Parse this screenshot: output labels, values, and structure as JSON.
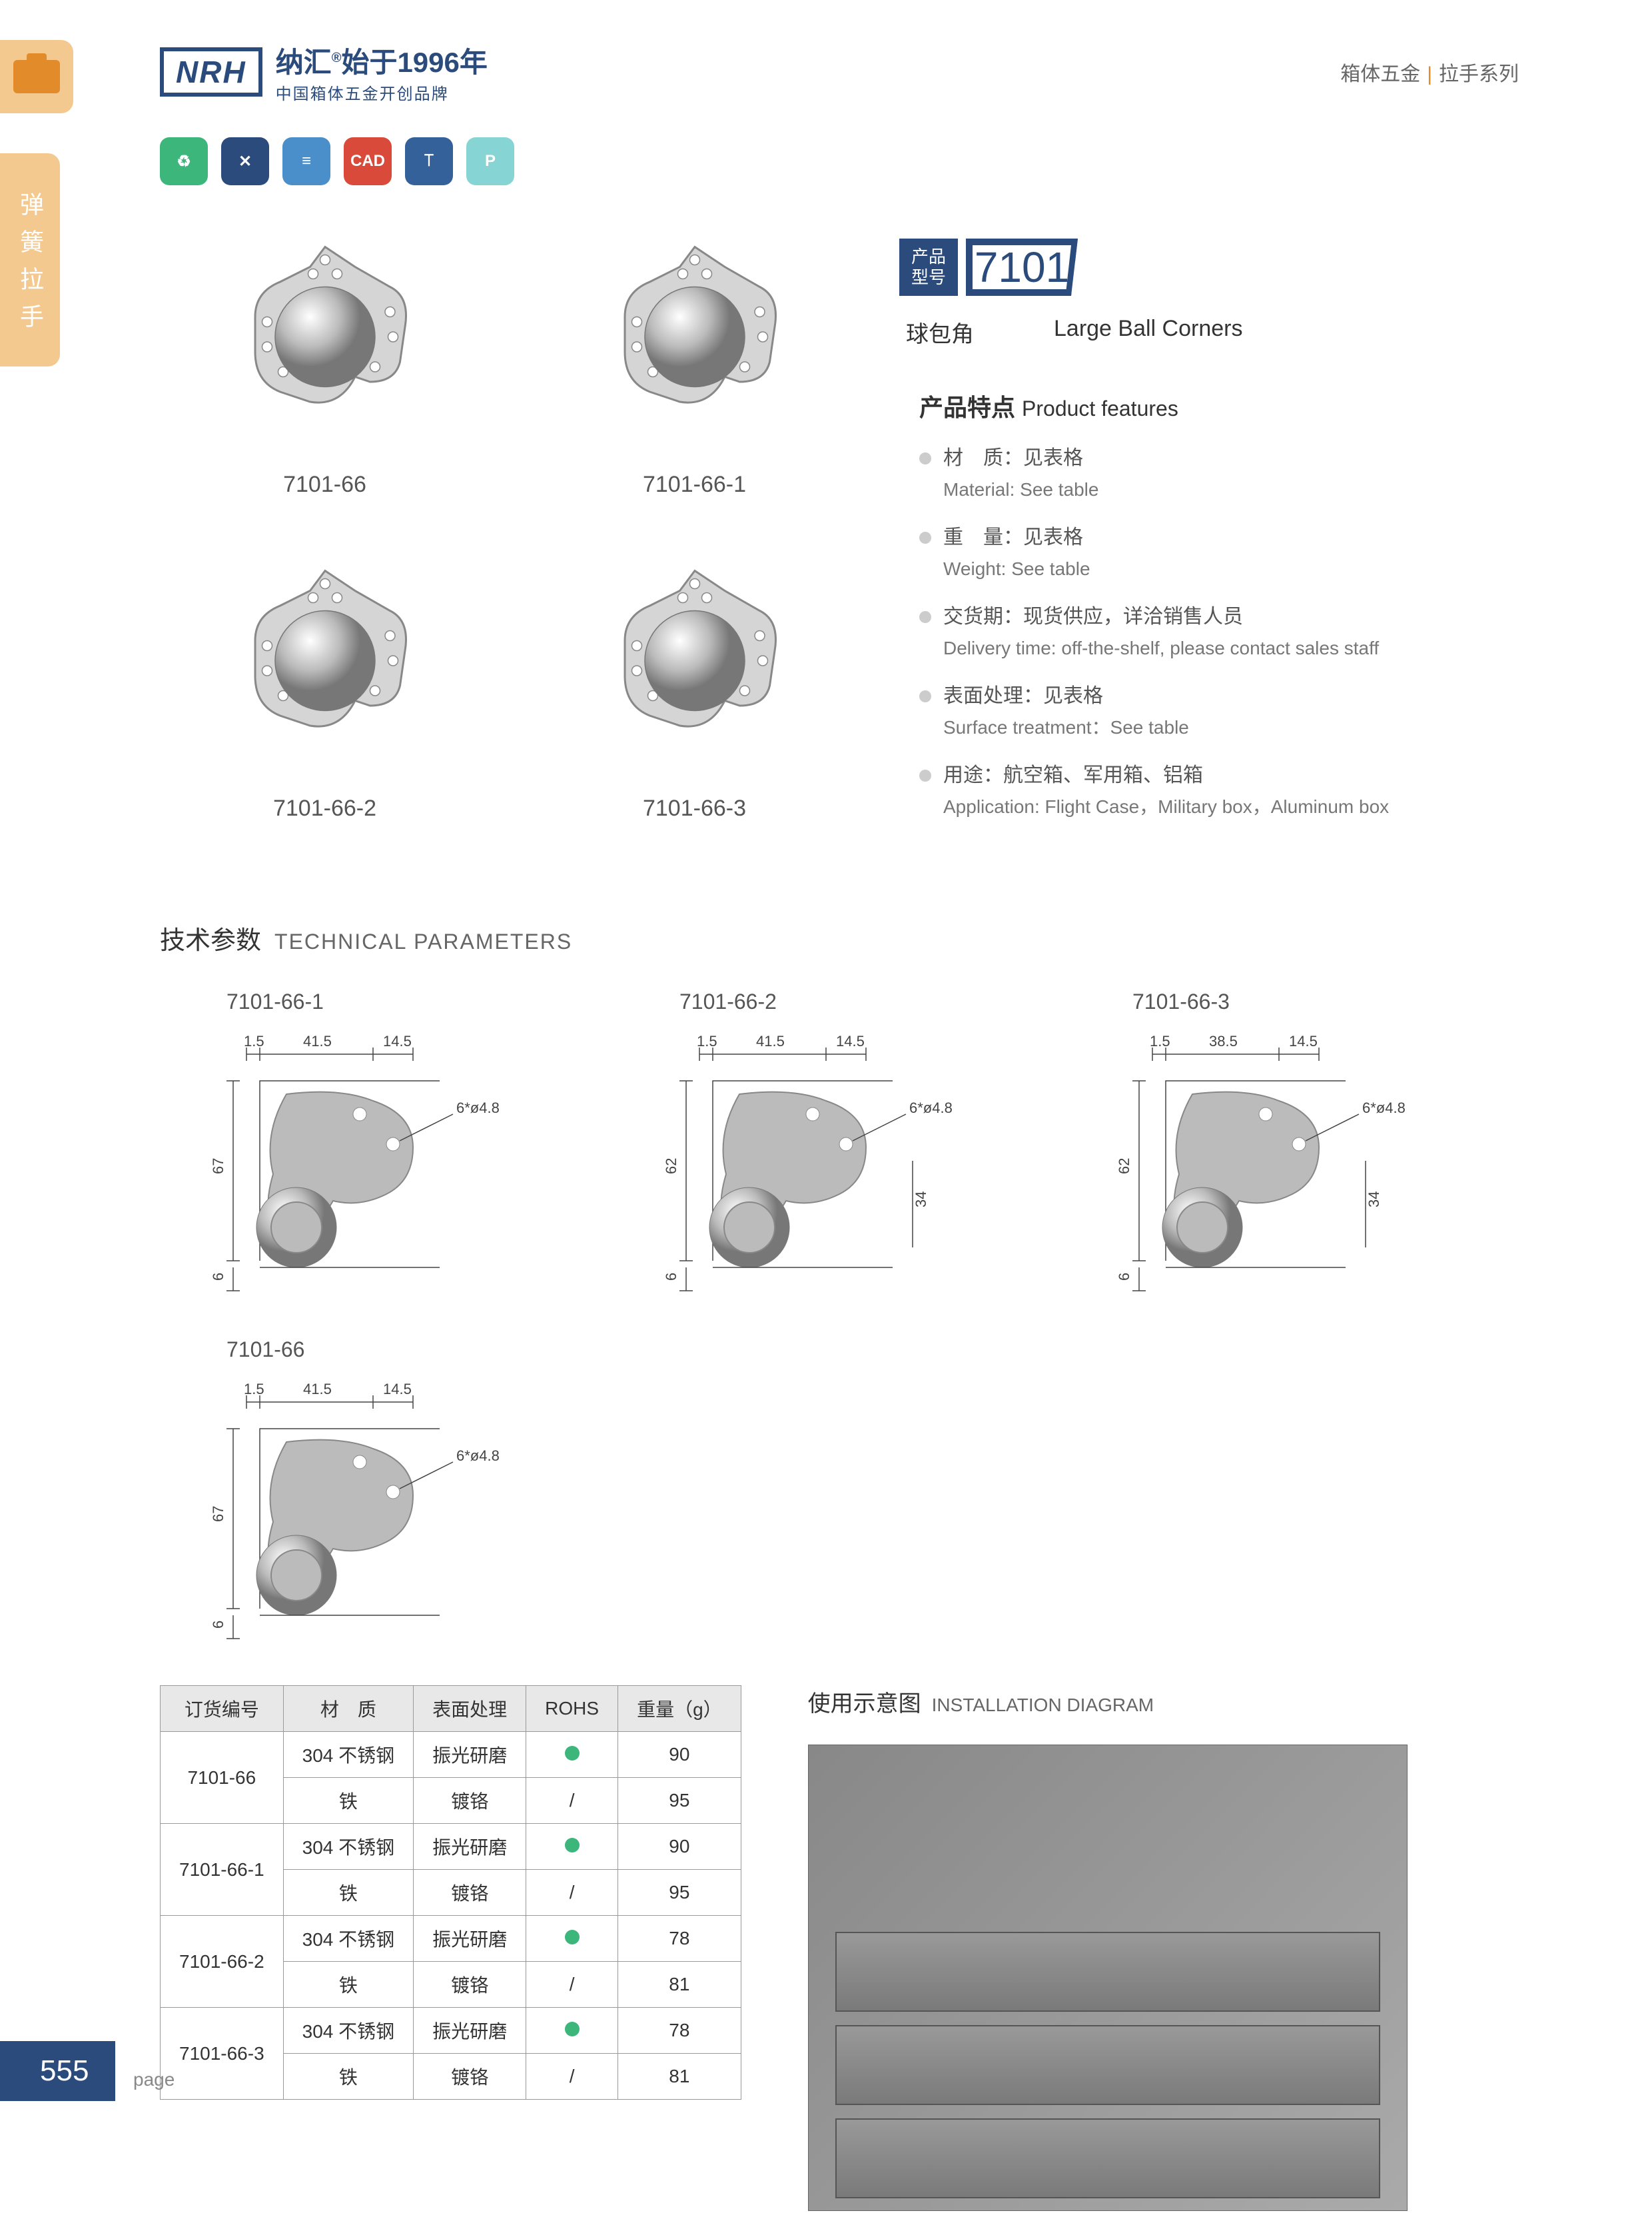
{
  "header": {
    "logo": "NRH",
    "logo_cn": "纳汇",
    "logo_year": "始于1996年",
    "logo_sub": "中国箱体五金开创品牌",
    "cat1": "箱体五金",
    "cat2": "拉手系列"
  },
  "side_tab": "弹簧拉手",
  "icons": [
    "♻",
    "✕",
    "≡",
    "CAD",
    "⟙",
    "P"
  ],
  "icon_colors": [
    "#3db67b",
    "#2a4b7c",
    "#4a8fc9",
    "#d94a3a",
    "#34619a",
    "#86d4d4"
  ],
  "products": [
    {
      "code": "7101-66"
    },
    {
      "code": "7101-66-1"
    },
    {
      "code": "7101-66-2"
    },
    {
      "code": "7101-66-3"
    }
  ],
  "model": {
    "label1": "产品",
    "label2": "型号",
    "number": "7101",
    "name_cn": "球包角",
    "name_en": "Large Ball Corners"
  },
  "features": {
    "title_cn": "产品特点",
    "title_en": "Product features",
    "items": [
      {
        "cn": "材　质：见表格",
        "en": "Material: See table"
      },
      {
        "cn": "重　量：见表格",
        "en": "Weight: See table"
      },
      {
        "cn": "交货期：现货供应，详洽销售人员",
        "en": "Delivery time: off-the-shelf, please contact sales staff"
      },
      {
        "cn": "表面处理：见表格",
        "en": "Surface treatment：See table"
      },
      {
        "cn": "用途：航空箱、军用箱、铝箱",
        "en": "Application: Flight Case，Military box，Aluminum box"
      }
    ]
  },
  "tech": {
    "title_cn": "技术参数",
    "title_en": "TECHNICAL PARAMETERS",
    "diagrams": [
      {
        "code": "7101-66-1",
        "d1": "1.5",
        "d2": "41.5",
        "d3": "14.5",
        "hole": "6*ø4.8",
        "h": "67",
        "t": "6"
      },
      {
        "code": "7101-66-2",
        "d1": "1.5",
        "d2": "41.5",
        "d3": "14.5",
        "hole": "6*ø4.8",
        "h": "62",
        "h2": "34",
        "t": "6"
      },
      {
        "code": "7101-66-3",
        "d1": "1.5",
        "d2": "38.5",
        "d3": "14.5",
        "hole": "6*ø4.8",
        "h": "62",
        "h2": "34",
        "t": "6"
      },
      {
        "code": "7101-66",
        "d1": "1.5",
        "d2": "41.5",
        "d3": "14.5",
        "hole": "6*ø4.8",
        "h": "67",
        "t": "6"
      }
    ]
  },
  "table": {
    "headers": [
      "订货编号",
      "材　质",
      "表面处理",
      "ROHS",
      "重量（g）"
    ],
    "rows": [
      [
        "7101-66",
        "304 不锈钢",
        "振光研磨",
        "dot",
        "90"
      ],
      [
        "",
        "铁",
        "镀铬",
        "/",
        "95"
      ],
      [
        "7101-66-1",
        "304 不锈钢",
        "振光研磨",
        "dot",
        "90"
      ],
      [
        "",
        "铁",
        "镀铬",
        "/",
        "95"
      ],
      [
        "7101-66-2",
        "304 不锈钢",
        "振光研磨",
        "dot",
        "78"
      ],
      [
        "",
        "铁",
        "镀铬",
        "/",
        "81"
      ],
      [
        "7101-66-3",
        "304 不锈钢",
        "振光研磨",
        "dot",
        "78"
      ],
      [
        "",
        "铁",
        "镀铬",
        "/",
        "81"
      ]
    ],
    "merge_first_col": [
      0,
      2,
      4,
      6
    ]
  },
  "install": {
    "title_cn": "使用示意图",
    "title_en": "INSTALLATION DIAGRAM"
  },
  "page": {
    "num": "555",
    "label": "page"
  }
}
